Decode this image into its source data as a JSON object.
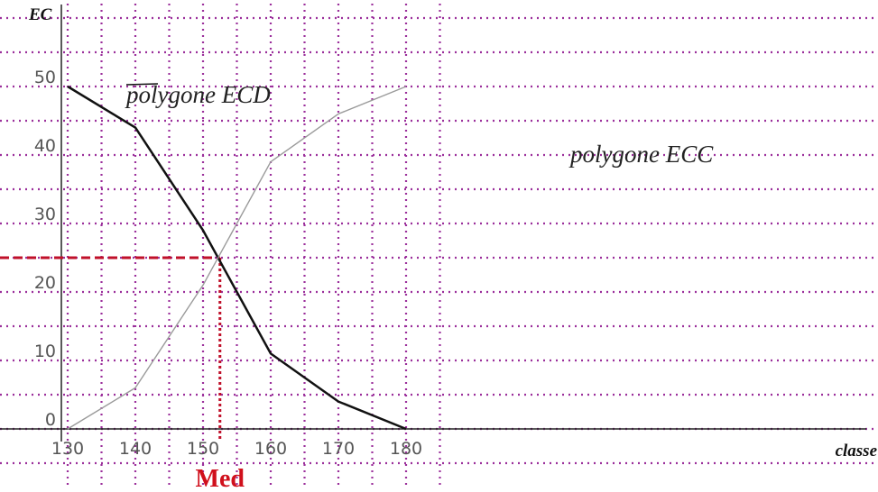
{
  "chart_data": {
    "type": "line",
    "xlabel": "classe",
    "ylabel": "EC",
    "xlim": [
      130,
      180
    ],
    "ylim": [
      0,
      50
    ],
    "grid": true,
    "x_ticks": [
      "130",
      "140",
      "150",
      "160",
      "170",
      "180"
    ],
    "y_ticks": [
      "0",
      "10",
      "20",
      "30",
      "40",
      "50"
    ],
    "series": [
      {
        "name": "polygone ECD",
        "color": "#111111",
        "points": [
          [
            130,
            50
          ],
          [
            140,
            44
          ],
          [
            150,
            29
          ],
          [
            160,
            11
          ],
          [
            170,
            4
          ],
          [
            180,
            0
          ]
        ]
      },
      {
        "name": "polygone ECC",
        "color": "#9a9a9a",
        "points": [
          [
            130,
            0
          ],
          [
            140,
            6
          ],
          [
            150,
            21
          ],
          [
            160,
            39
          ],
          [
            170,
            46
          ],
          [
            180,
            50
          ]
        ]
      }
    ],
    "median": {
      "label": "Med",
      "x": 152.5,
      "y": 25,
      "color": "#c0102a"
    }
  }
}
